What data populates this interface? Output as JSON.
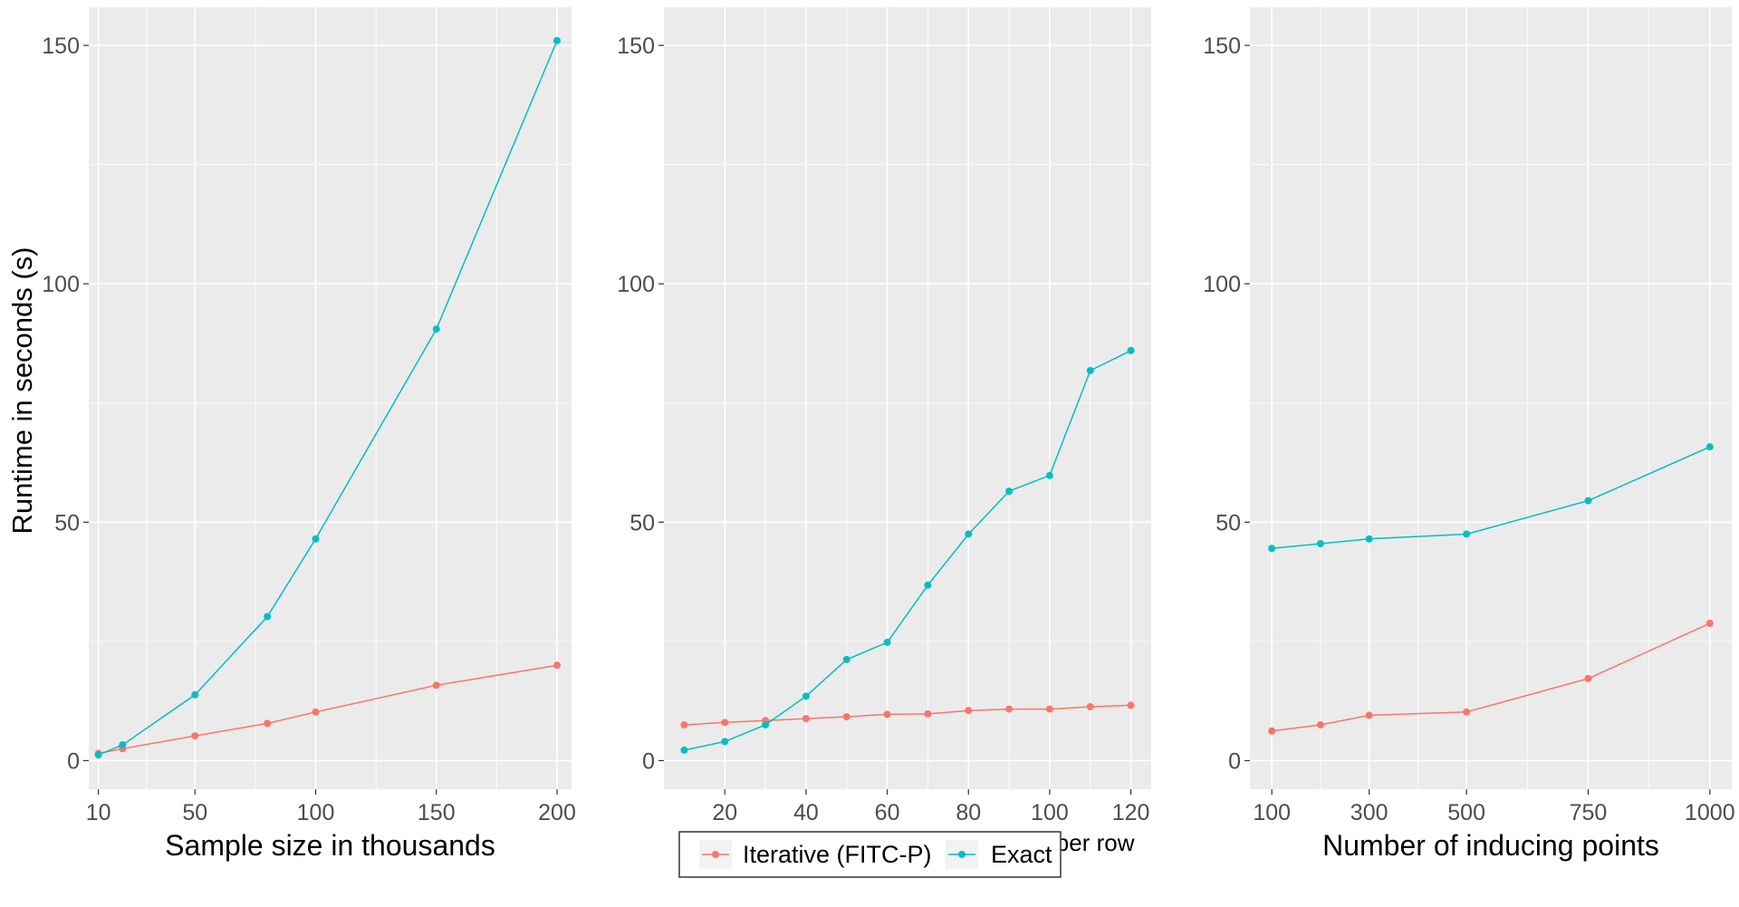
{
  "figure": {
    "ylabel": "Runtime in seconds (s)",
    "legend": {
      "placement": "bottom-center",
      "entries": [
        {
          "name": "Iterative (FITC-P)",
          "color": "#F8766D"
        },
        {
          "name": "Exact",
          "color": "#00BFC4"
        }
      ]
    },
    "panel_background": "#EBEBEB",
    "grid_color": "#FFFFFF"
  },
  "chart_data": [
    {
      "type": "line",
      "xlabel": "Sample size in thousands",
      "ylabel": "Runtime in seconds (s)",
      "xlim": [
        6,
        206
      ],
      "ylim": [
        -6,
        158
      ],
      "xticks": [
        10,
        50,
        100,
        150,
        200
      ],
      "xtick_labels": [
        "10",
        "50",
        "100",
        "150",
        "200"
      ],
      "yticks": [
        0,
        50,
        100,
        150
      ],
      "ytick_labels": [
        "0",
        "50",
        "100",
        "150"
      ],
      "series": [
        {
          "name": "Iterative (FITC-P)",
          "color": "#F8766D",
          "x": [
            10,
            20,
            50,
            80,
            100,
            150,
            200
          ],
          "y": [
            1.5,
            2.5,
            5.2,
            7.8,
            10.2,
            15.8,
            20.0
          ]
        },
        {
          "name": "Exact",
          "color": "#00BFC4",
          "x": [
            10,
            20,
            50,
            80,
            100,
            150,
            200
          ],
          "y": [
            1.2,
            3.3,
            13.8,
            30.2,
            46.5,
            90.5,
            151.0
          ]
        }
      ]
    },
    {
      "type": "line",
      "xlabel": "Average number of nonzero entries per row",
      "ylabel": "",
      "xlim": [
        5,
        125
      ],
      "ylim": [
        -6,
        158
      ],
      "xticks": [
        20,
        40,
        60,
        80,
        100,
        120
      ],
      "xtick_labels": [
        "20",
        "40",
        "60",
        "80",
        "100",
        "120"
      ],
      "yticks": [
        0,
        50,
        100,
        150
      ],
      "ytick_labels": [
        "0",
        "50",
        "100",
        "150"
      ],
      "series": [
        {
          "name": "Iterative (FITC-P)",
          "color": "#F8766D",
          "x": [
            10,
            20,
            30,
            40,
            50,
            60,
            70,
            80,
            90,
            100,
            110,
            120
          ],
          "y": [
            7.5,
            8.0,
            8.4,
            8.8,
            9.2,
            9.7,
            9.8,
            10.5,
            10.8,
            10.8,
            11.3,
            11.6
          ]
        },
        {
          "name": "Exact",
          "color": "#00BFC4",
          "x": [
            10,
            20,
            30,
            40,
            50,
            60,
            70,
            80,
            90,
            100,
            110,
            120
          ],
          "y": [
            2.2,
            4.0,
            7.5,
            13.5,
            21.2,
            24.8,
            36.8,
            47.5,
            56.5,
            59.8,
            81.8,
            86.0
          ]
        }
      ]
    },
    {
      "type": "line",
      "xlabel": "Number of inducing points",
      "ylabel": "",
      "xlim": [
        55,
        1045
      ],
      "ylim": [
        -6,
        158
      ],
      "xticks": [
        100,
        300,
        500,
        750,
        1000
      ],
      "xtick_labels": [
        "100",
        "300",
        "500",
        "750",
        "1000"
      ],
      "yticks": [
        0,
        50,
        100,
        150
      ],
      "ytick_labels": [
        "0",
        "50",
        "100",
        "150"
      ],
      "series": [
        {
          "name": "Iterative (FITC-P)",
          "color": "#F8766D",
          "x": [
            100,
            200,
            300,
            500,
            750,
            1000
          ],
          "y": [
            6.2,
            7.5,
            9.5,
            10.2,
            17.2,
            28.8
          ]
        },
        {
          "name": "Exact",
          "color": "#00BFC4",
          "x": [
            100,
            200,
            300,
            500,
            750,
            1000
          ],
          "y": [
            44.5,
            45.5,
            46.5,
            47.5,
            54.5,
            65.8
          ]
        }
      ]
    }
  ]
}
